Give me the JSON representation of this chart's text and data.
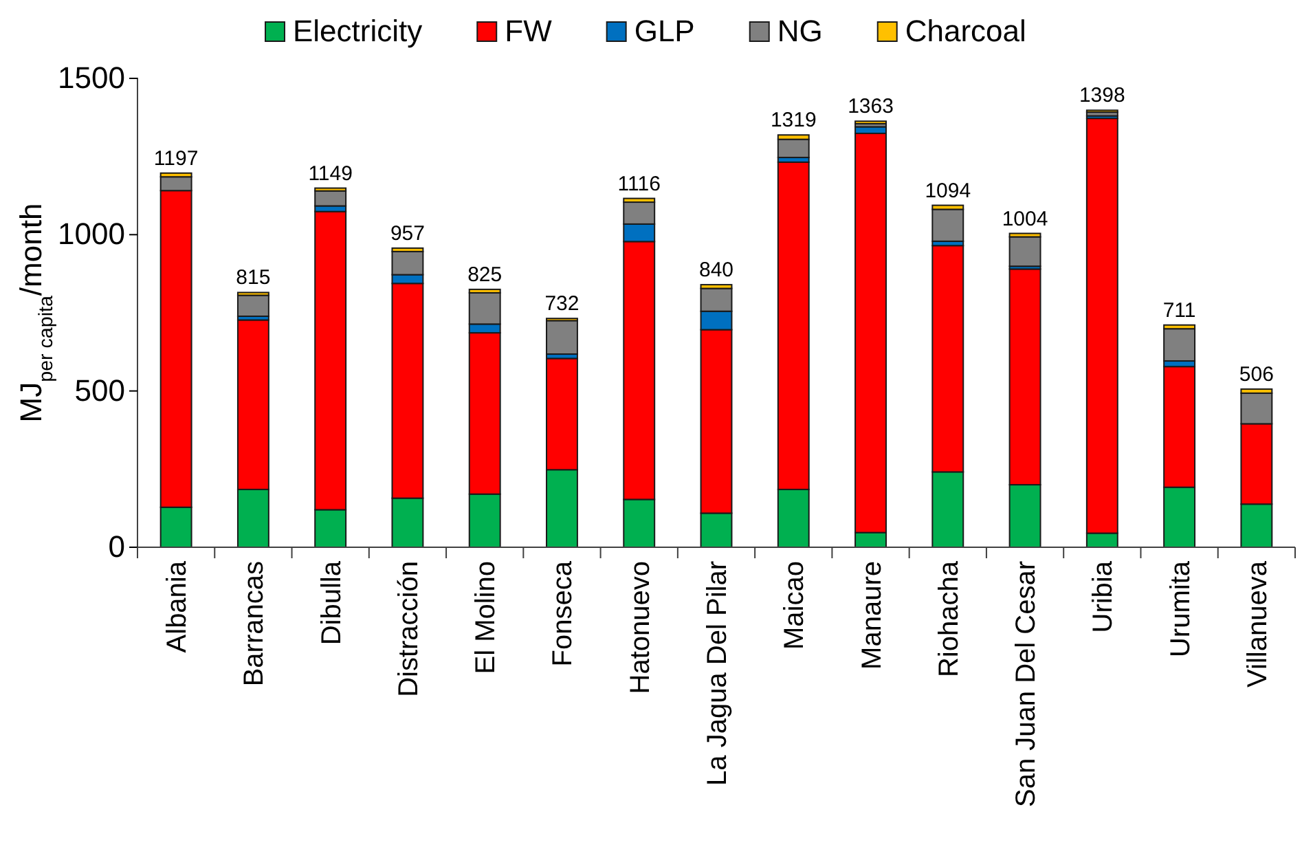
{
  "chart_data": {
    "type": "bar",
    "stacked": true,
    "ylabel": "MJ$_{per capita}$/month",
    "categories": [
      "Albania",
      "Barrancas",
      "Dibulla",
      "Distracción",
      "El Molino",
      "Fonseca",
      "Hatonuevo",
      "La Jagua Del Pilar",
      "Maicao",
      "Manaure",
      "Riohacha",
      "San Juan Del Cesar",
      "Uribia",
      "Urumita",
      "Villanueva"
    ],
    "series": [
      {
        "name": "Electricity",
        "color": "#00b050",
        "values": [
          128,
          185,
          120,
          157,
          170,
          248,
          153,
          109,
          185,
          47,
          241,
          200,
          45,
          192,
          138
        ]
      },
      {
        "name": "FW",
        "color": "#ff0000",
        "values": [
          1013,
          542,
          954,
          687,
          516,
          356,
          825,
          587,
          1047,
          1277,
          724,
          690,
          1327,
          386,
          257
        ]
      },
      {
        "name": "GLP",
        "color": "#0070c0",
        "values": [
          null,
          12,
          18,
          28,
          28,
          14,
          56,
          59,
          15,
          21,
          14,
          9,
          8,
          18,
          0
        ]
      },
      {
        "name": "NG",
        "color": "#808080",
        "values": [
          44,
          67,
          48,
          74,
          100,
          107,
          70,
          73,
          58,
          10,
          102,
          94,
          12,
          103,
          98
        ]
      },
      {
        "name": "Charcoal",
        "color": "#ffc000",
        "values": [
          12,
          9,
          9,
          11,
          11,
          7,
          12,
          12,
          14,
          8,
          13,
          11,
          6,
          12,
          13
        ]
      }
    ],
    "totals": [
      "1197",
      "815",
      "1149",
      "957",
      "825",
      "732",
      "1116",
      "840",
      "1319",
      "1363",
      "1094",
      "1004",
      "1398",
      "711",
      "506"
    ],
    "ylim": [
      0,
      1500
    ],
    "yticks": [
      0,
      500,
      1000,
      1500
    ],
    "grid": false,
    "legend": "top"
  }
}
